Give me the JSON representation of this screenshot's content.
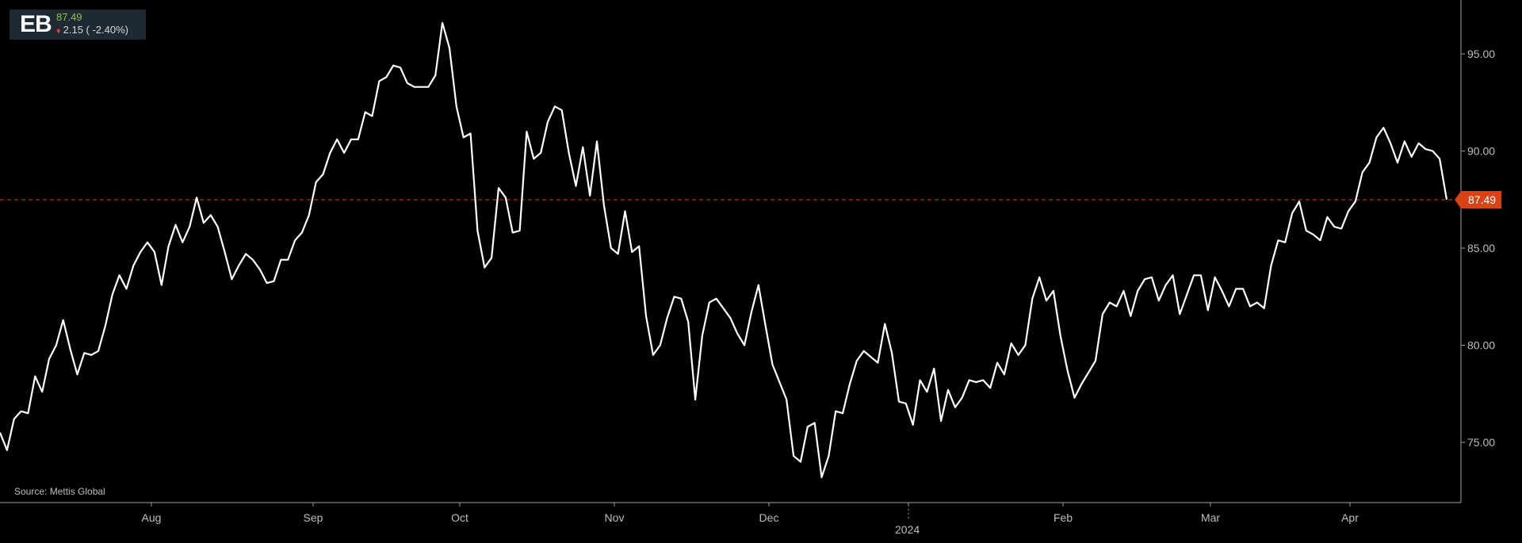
{
  "ticker": {
    "symbol": "EB",
    "price": "87.49",
    "change": "2.15 ( -2.40%)"
  },
  "source": "Source: Mettis Global",
  "colors": {
    "background": "#000000",
    "line": "#ffffff",
    "last_price": "#d84315",
    "up": "#8bc34a",
    "down": "#e53935"
  },
  "chart_data": {
    "type": "line",
    "title": "",
    "xlabel": "",
    "ylabel": "",
    "x_ticks": [
      "Aug",
      "Sep",
      "Oct",
      "Nov",
      "Dec",
      "2024",
      "Feb",
      "Mar",
      "Apr"
    ],
    "year_label": "2024",
    "y_ticks": [
      "95.00",
      "90.00",
      "85.00",
      "80.00",
      "75.00"
    ],
    "ylim": [
      72.5,
      98.5
    ],
    "last_price": 87.49,
    "last_price_label": "87.49",
    "grid": false,
    "series": [
      {
        "values": [
          75.5,
          74.6,
          76.2,
          76.6,
          76.5,
          78.4,
          77.6,
          79.3,
          80.0,
          81.3,
          79.8,
          78.5,
          79.6,
          79.5,
          79.7,
          81.0,
          82.6,
          83.6,
          82.9,
          84.1,
          84.8,
          85.3,
          84.8,
          83.1,
          85.1,
          86.2,
          85.3,
          86.1,
          87.6,
          86.3,
          86.7,
          86.1,
          84.8,
          83.4,
          84.1,
          84.7,
          84.4,
          83.9,
          83.2,
          83.3,
          84.4,
          84.4,
          85.4,
          85.8,
          86.7,
          88.4,
          88.8,
          89.9,
          90.6,
          89.9,
          90.6,
          90.6,
          92.0,
          91.8,
          93.6,
          93.8,
          94.4,
          94.3,
          93.5,
          93.3,
          93.3,
          93.3,
          93.9,
          96.6,
          95.3,
          92.3,
          90.7,
          90.9,
          85.9,
          84.0,
          84.5,
          88.1,
          87.6,
          85.8,
          85.9,
          91.0,
          89.6,
          89.9,
          91.5,
          92.3,
          92.1,
          89.9,
          88.2,
          90.2,
          87.7,
          90.5,
          87.2,
          85.0,
          84.7,
          86.9,
          84.8,
          85.1,
          81.5,
          79.5,
          80.0,
          81.4,
          82.5,
          82.4,
          81.2,
          77.2,
          80.5,
          82.2,
          82.4,
          81.9,
          81.4,
          80.6,
          80.0,
          81.7,
          83.1,
          81.0,
          79.0,
          78.1,
          77.2,
          74.3,
          74.0,
          75.8,
          76.0,
          73.2,
          74.3,
          76.6,
          76.5,
          78.0,
          79.2,
          79.7,
          79.4,
          79.1,
          81.1,
          79.6,
          77.1,
          77.0,
          75.9,
          78.2,
          77.6,
          78.8,
          76.1,
          77.7,
          76.8,
          77.3,
          78.2,
          78.1,
          78.2,
          77.8,
          79.1,
          78.5,
          80.1,
          79.5,
          80.0,
          82.4,
          83.5,
          82.3,
          82.8,
          80.5,
          78.7,
          77.3,
          78.0,
          78.6,
          79.2,
          81.6,
          82.2,
          82.0,
          82.8,
          81.5,
          82.8,
          83.4,
          83.5,
          82.3,
          83.1,
          83.6,
          81.6,
          82.6,
          83.6,
          83.6,
          81.8,
          83.5,
          82.8,
          82.0,
          82.9,
          82.9,
          82.0,
          82.2,
          81.9,
          84.1,
          85.4,
          85.3,
          86.8,
          87.4,
          85.9,
          85.7,
          85.4,
          86.6,
          86.1,
          86.0,
          86.9,
          87.4,
          88.9,
          89.4,
          90.7,
          91.2,
          90.4,
          89.4,
          90.5,
          89.7,
          90.4,
          90.1,
          90.0,
          89.6,
          87.5
        ]
      }
    ]
  }
}
